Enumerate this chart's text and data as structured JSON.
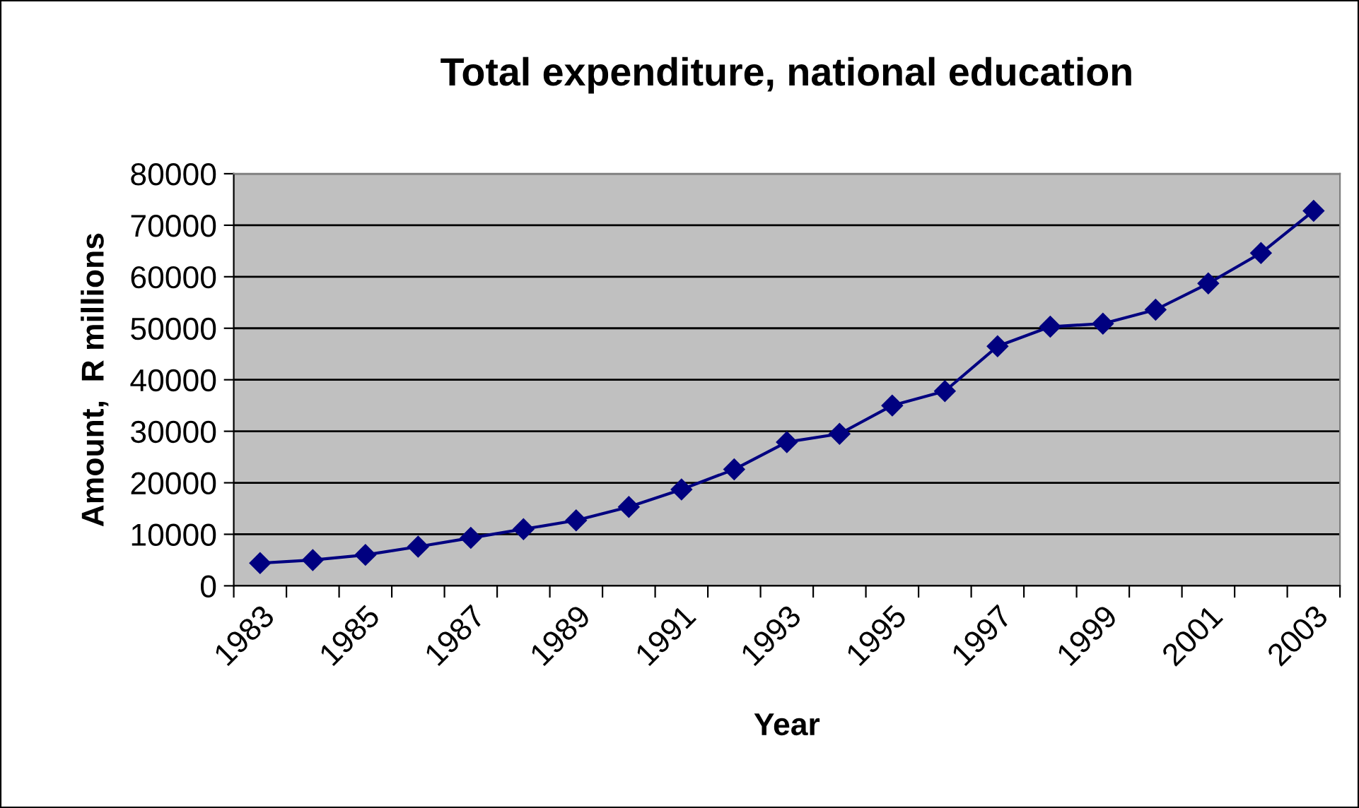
{
  "chart_data": {
    "type": "line",
    "title": "Total expenditure, national education",
    "xlabel": "Year",
    "ylabel": "Amount,  R millions",
    "categories": [
      "1983",
      null,
      "1985",
      null,
      "1987",
      null,
      "1989",
      null,
      "1991",
      null,
      "1993",
      null,
      "1995",
      null,
      "1997",
      null,
      "1999",
      null,
      "2001",
      null,
      "2003"
    ],
    "series": [
      {
        "color": "#000080",
        "values": [
          4400,
          5000,
          6000,
          7600,
          9300,
          11000,
          12700,
          15300,
          18700,
          22600,
          27900,
          29500,
          35000,
          37800,
          46500,
          50300,
          50900,
          53600,
          58700,
          64600,
          72800
        ]
      }
    ],
    "ylim": [
      0,
      80000
    ],
    "yticks": [
      0,
      10000,
      20000,
      30000,
      40000,
      50000,
      60000,
      70000,
      80000
    ],
    "grid": "y",
    "marker": "diamond",
    "line_style": "solid",
    "legend": false
  }
}
